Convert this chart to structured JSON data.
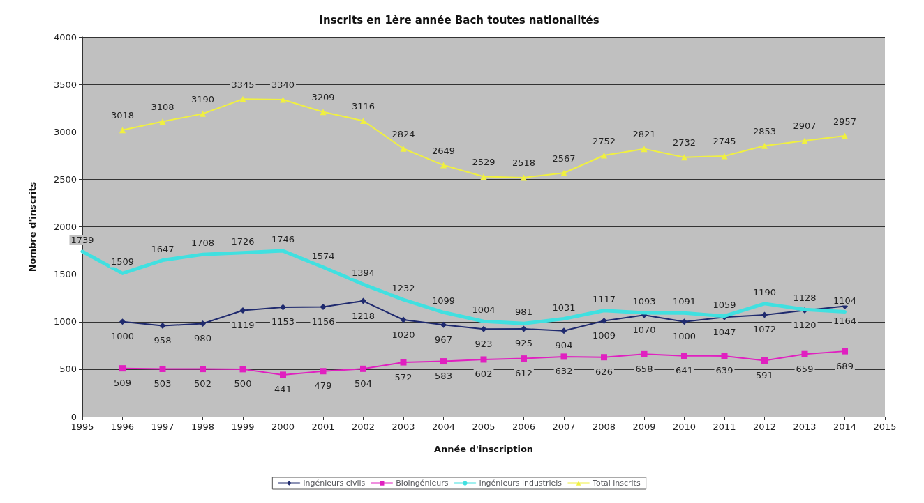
{
  "chart_data": {
    "type": "line",
    "title": "Inscrits en 1ère année Bach toutes nationalités",
    "xlabel": "Année d'inscription",
    "ylabel": "Nombre d'inscrits",
    "xlim": [
      1995,
      2015
    ],
    "xticks": [
      1995,
      1996,
      1997,
      1998,
      1999,
      2000,
      2001,
      2002,
      2003,
      2004,
      2005,
      2006,
      2007,
      2008,
      2009,
      2010,
      2011,
      2012,
      2013,
      2014,
      2015
    ],
    "ylim": [
      0,
      4000
    ],
    "yticks": [
      0,
      500,
      1000,
      1500,
      2000,
      2500,
      3000,
      3500,
      4000
    ],
    "grid": "y",
    "legend": "bottom",
    "data_labels": true,
    "series": [
      {
        "name": "Ingénieurs civils",
        "color": "#1f2a6e",
        "marker": "diamond",
        "x": [
          1996,
          1997,
          1998,
          1999,
          2000,
          2001,
          2002,
          2003,
          2004,
          2005,
          2006,
          2007,
          2008,
          2009,
          2010,
          2011,
          2012,
          2013,
          2014
        ],
        "values": [
          1000,
          958,
          980,
          1119,
          1153,
          1156,
          1218,
          1020,
          967,
          923,
          925,
          904,
          1009,
          1070,
          1000,
          1047,
          1072,
          1120,
          1164
        ]
      },
      {
        "name": "Bioingénieurs",
        "color": "#e020c0",
        "marker": "square",
        "x": [
          1996,
          1997,
          1998,
          1999,
          2000,
          2001,
          2002,
          2003,
          2004,
          2005,
          2006,
          2007,
          2008,
          2009,
          2010,
          2011,
          2012,
          2013,
          2014
        ],
        "values": [
          509,
          503,
          502,
          500,
          441,
          479,
          504,
          572,
          583,
          602,
          612,
          632,
          626,
          658,
          641,
          639,
          591,
          659,
          689
        ]
      },
      {
        "name": "Ingénieurs industriels",
        "color": "#40e0e0",
        "marker": "none",
        "x": [
          1995,
          1996,
          1997,
          1998,
          1999,
          2000,
          2001,
          2002,
          2003,
          2004,
          2005,
          2006,
          2007,
          2008,
          2009,
          2010,
          2011,
          2012,
          2013,
          2014
        ],
        "values": [
          1739,
          1509,
          1647,
          1708,
          1726,
          1746,
          1574,
          1394,
          1232,
          1099,
          1004,
          981,
          1031,
          1117,
          1093,
          1091,
          1059,
          1190,
          1128,
          1104
        ]
      },
      {
        "name": "Total inscrits",
        "color": "#f0f040",
        "marker": "triangle",
        "x": [
          1996,
          1997,
          1998,
          1999,
          2000,
          2001,
          2002,
          2003,
          2004,
          2005,
          2006,
          2007,
          2008,
          2009,
          2010,
          2011,
          2012,
          2013,
          2014
        ],
        "values": [
          3018,
          3108,
          3190,
          3345,
          3340,
          3209,
          3116,
          2824,
          2649,
          2529,
          2518,
          2567,
          2752,
          2821,
          2732,
          2745,
          2853,
          2907,
          2957
        ]
      }
    ]
  }
}
